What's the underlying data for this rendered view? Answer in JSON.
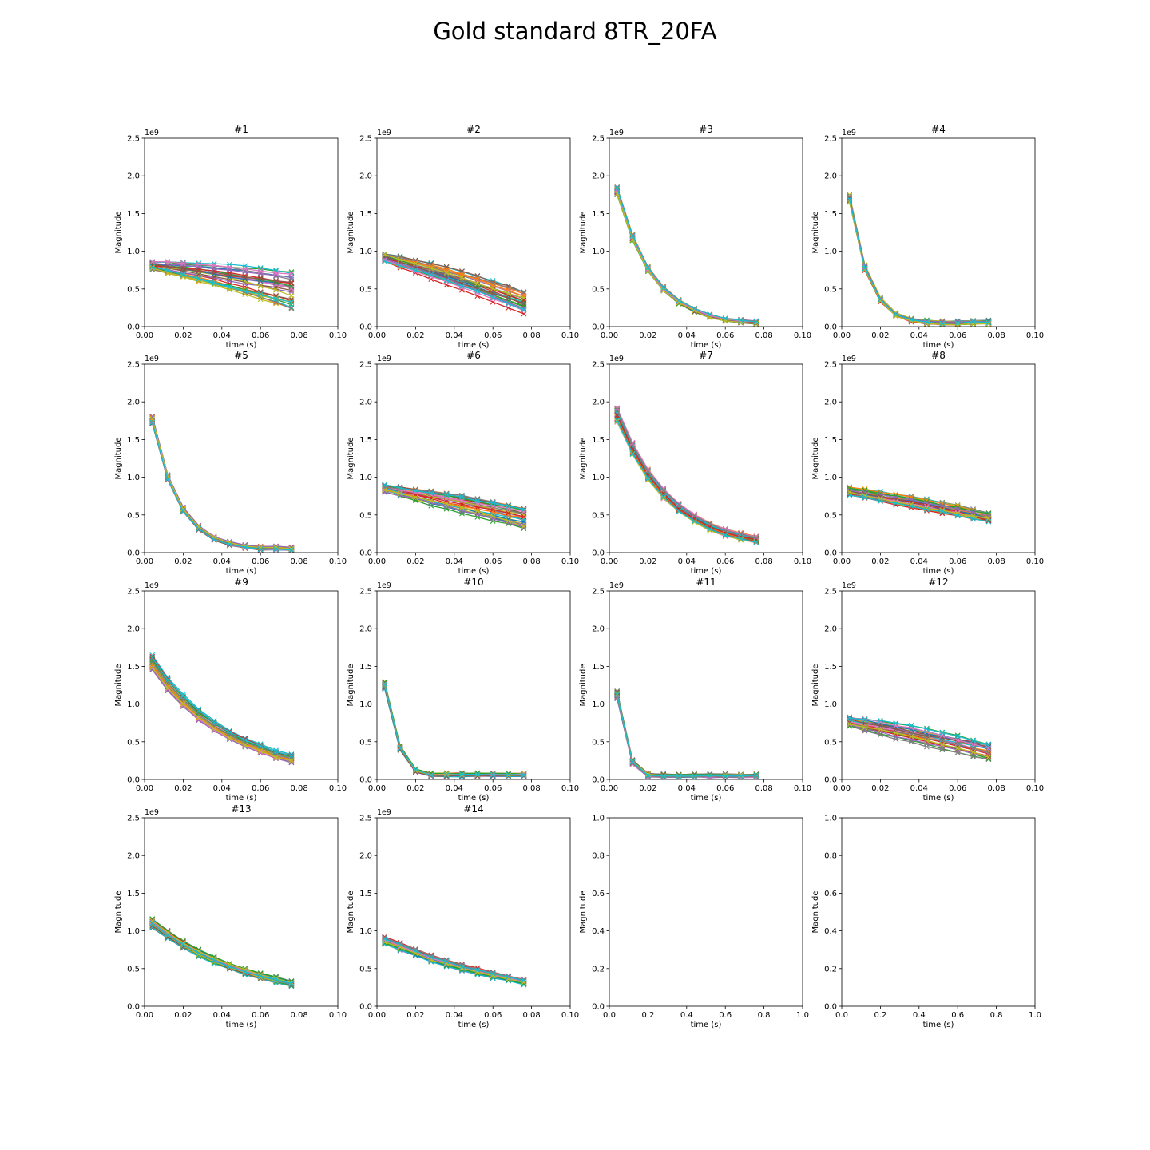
{
  "figure_title": "Gold standard 8TR_20FA",
  "colors": [
    "#1f77b4",
    "#ff7f0e",
    "#2ca02c",
    "#d62728",
    "#9467bd",
    "#8c564b",
    "#e377c2",
    "#7f7f7f",
    "#bcbd22",
    "#17becf"
  ],
  "chart_data": [
    {
      "type": "line",
      "title": "#1",
      "xlabel": "time (s)",
      "ylabel": "Magnitude",
      "exponent_label": "1e9",
      "xlim": [
        0,
        0.1
      ],
      "ylim": [
        0,
        2.5
      ],
      "xticks": [
        "0.00",
        "0.02",
        "0.04",
        "0.06",
        "0.08",
        "0.10"
      ],
      "yticks": [
        "0.0",
        "0.5",
        "1.0",
        "1.5",
        "2.0",
        "2.5"
      ],
      "x": [
        0.004,
        0.012,
        0.02,
        0.028,
        0.036,
        0.044,
        0.052,
        0.06,
        0.068,
        0.076
      ],
      "band": {
        "start": [
          0.75,
          0.87
        ],
        "end": [
          0.25,
          0.72
        ],
        "curve": "linear"
      }
    },
    {
      "type": "line",
      "title": "#2",
      "xlabel": "time (s)",
      "ylabel": "Magnitude",
      "exponent_label": "1e9",
      "xlim": [
        0,
        0.1
      ],
      "ylim": [
        0,
        2.5
      ],
      "xticks": [
        "0.00",
        "0.02",
        "0.04",
        "0.06",
        "0.08",
        "0.10"
      ],
      "yticks": [
        "0.0",
        "0.5",
        "1.0",
        "1.5",
        "2.0",
        "2.5"
      ],
      "x": [
        0.004,
        0.012,
        0.02,
        0.028,
        0.036,
        0.044,
        0.052,
        0.06,
        0.068,
        0.076
      ],
      "band": {
        "start": [
          0.84,
          0.97
        ],
        "end": [
          0.17,
          0.46
        ],
        "curve": "linear"
      }
    },
    {
      "type": "line",
      "title": "#3",
      "xlabel": "time (s)",
      "ylabel": "Magnitude",
      "exponent_label": "1e9",
      "xlim": [
        0,
        0.1
      ],
      "ylim": [
        0,
        2.5
      ],
      "xticks": [
        "0.00",
        "0.02",
        "0.04",
        "0.06",
        "0.08",
        "0.10"
      ],
      "yticks": [
        "0.0",
        "0.5",
        "1.0",
        "1.5",
        "2.0",
        "2.5"
      ],
      "x": [
        0.004,
        0.012,
        0.02,
        0.028,
        0.036,
        0.044,
        0.052,
        0.06,
        0.068,
        0.076
      ],
      "mean": [
        1.8,
        1.18,
        0.76,
        0.5,
        0.33,
        0.22,
        0.14,
        0.09,
        0.07,
        0.05
      ],
      "spread": 0.05
    },
    {
      "type": "line",
      "title": "#4",
      "xlabel": "time (s)",
      "ylabel": "Magnitude",
      "exponent_label": "1e9",
      "xlim": [
        0,
        0.1
      ],
      "ylim": [
        0,
        2.5
      ],
      "xticks": [
        "0.00",
        "0.02",
        "0.04",
        "0.06",
        "0.08",
        "0.10"
      ],
      "yticks": [
        "0.0",
        "0.5",
        "1.0",
        "1.5",
        "2.0",
        "2.5"
      ],
      "x": [
        0.004,
        0.012,
        0.02,
        0.028,
        0.036,
        0.044,
        0.052,
        0.06,
        0.068,
        0.076
      ],
      "mean": [
        1.7,
        0.78,
        0.36,
        0.16,
        0.09,
        0.06,
        0.05,
        0.05,
        0.06,
        0.06
      ],
      "spread": 0.05
    },
    {
      "type": "line",
      "title": "#5",
      "xlabel": "time (s)",
      "ylabel": "Magnitude",
      "exponent_label": "1e9",
      "xlim": [
        0,
        0.1
      ],
      "ylim": [
        0,
        2.5
      ],
      "xticks": [
        "0.00",
        "0.02",
        "0.04",
        "0.06",
        "0.08",
        "0.10"
      ],
      "yticks": [
        "0.0",
        "0.5",
        "1.0",
        "1.5",
        "2.0",
        "2.5"
      ],
      "x": [
        0.004,
        0.012,
        0.02,
        0.028,
        0.036,
        0.044,
        0.052,
        0.06,
        0.068,
        0.076
      ],
      "mean": [
        1.76,
        1.0,
        0.57,
        0.33,
        0.19,
        0.12,
        0.08,
        0.06,
        0.06,
        0.05
      ],
      "spread": 0.05
    },
    {
      "type": "line",
      "title": "#6",
      "xlabel": "time (s)",
      "ylabel": "Magnitude",
      "exponent_label": "1e9",
      "xlim": [
        0,
        0.1
      ],
      "ylim": [
        0,
        2.5
      ],
      "xticks": [
        "0.00",
        "0.02",
        "0.04",
        "0.06",
        "0.08",
        "0.10"
      ],
      "yticks": [
        "0.0",
        "0.5",
        "1.0",
        "1.5",
        "2.0",
        "2.5"
      ],
      "x": [
        0.004,
        0.012,
        0.02,
        0.028,
        0.036,
        0.044,
        0.052,
        0.06,
        0.068,
        0.076
      ],
      "band": {
        "start": [
          0.8,
          0.9
        ],
        "end": [
          0.33,
          0.58
        ],
        "curve": "linear"
      }
    },
    {
      "type": "line",
      "title": "#7",
      "xlabel": "time (s)",
      "ylabel": "Magnitude",
      "exponent_label": "1e9",
      "xlim": [
        0,
        0.1
      ],
      "ylim": [
        0,
        2.5
      ],
      "xticks": [
        "0.00",
        "0.02",
        "0.04",
        "0.06",
        "0.08",
        "0.10"
      ],
      "yticks": [
        "0.0",
        "0.5",
        "1.0",
        "1.5",
        "2.0",
        "2.5"
      ],
      "x": [
        0.004,
        0.012,
        0.02,
        0.028,
        0.036,
        0.044,
        0.052,
        0.06,
        0.068,
        0.076
      ],
      "mean": [
        1.82,
        1.37,
        1.03,
        0.78,
        0.59,
        0.45,
        0.34,
        0.26,
        0.21,
        0.17
      ],
      "spread": 0.1
    },
    {
      "type": "line",
      "title": "#8",
      "xlabel": "time (s)",
      "ylabel": "Magnitude",
      "exponent_label": "1e9",
      "xlim": [
        0,
        0.1
      ],
      "ylim": [
        0,
        2.5
      ],
      "xticks": [
        "0.00",
        "0.02",
        "0.04",
        "0.06",
        "0.08",
        "0.10"
      ],
      "yticks": [
        "0.0",
        "0.5",
        "1.0",
        "1.5",
        "2.0",
        "2.5"
      ],
      "x": [
        0.004,
        0.012,
        0.02,
        0.028,
        0.036,
        0.044,
        0.052,
        0.06,
        0.068,
        0.076
      ],
      "band": {
        "start": [
          0.76,
          0.87
        ],
        "end": [
          0.4,
          0.52
        ],
        "curve": "linear"
      }
    },
    {
      "type": "line",
      "title": "#9",
      "xlabel": "time (s)",
      "ylabel": "Magnitude",
      "exponent_label": "1e9",
      "xlim": [
        0,
        0.1
      ],
      "ylim": [
        0,
        2.5
      ],
      "xticks": [
        "0.00",
        "0.02",
        "0.04",
        "0.06",
        "0.08",
        "0.10"
      ],
      "yticks": [
        "0.0",
        "0.5",
        "1.0",
        "1.5",
        "2.0",
        "2.5"
      ],
      "x": [
        0.004,
        0.012,
        0.02,
        0.028,
        0.036,
        0.044,
        0.052,
        0.06,
        0.068,
        0.076
      ],
      "mean": [
        1.55,
        1.27,
        1.05,
        0.86,
        0.71,
        0.59,
        0.49,
        0.41,
        0.33,
        0.28
      ],
      "spread": 0.1
    },
    {
      "type": "line",
      "title": "#10",
      "xlabel": "time (s)",
      "ylabel": "Magnitude",
      "exponent_label": "1e9",
      "xlim": [
        0,
        0.1
      ],
      "ylim": [
        0,
        2.5
      ],
      "xticks": [
        "0.00",
        "0.02",
        "0.04",
        "0.06",
        "0.08",
        "0.10"
      ],
      "yticks": [
        "0.0",
        "0.5",
        "1.0",
        "1.5",
        "2.0",
        "2.5"
      ],
      "x": [
        0.004,
        0.012,
        0.02,
        0.028,
        0.036,
        0.044,
        0.052,
        0.06,
        0.068,
        0.076
      ],
      "mean": [
        1.25,
        0.42,
        0.12,
        0.06,
        0.06,
        0.06,
        0.06,
        0.06,
        0.06,
        0.06
      ],
      "spread": 0.05
    },
    {
      "type": "line",
      "title": "#11",
      "xlabel": "time (s)",
      "ylabel": "Magnitude",
      "exponent_label": "1e9",
      "xlim": [
        0,
        0.1
      ],
      "ylim": [
        0,
        2.5
      ],
      "xticks": [
        "0.00",
        "0.02",
        "0.04",
        "0.06",
        "0.08",
        "0.10"
      ],
      "yticks": [
        "0.0",
        "0.5",
        "1.0",
        "1.5",
        "2.0",
        "2.5"
      ],
      "x": [
        0.004,
        0.012,
        0.02,
        0.028,
        0.036,
        0.044,
        0.052,
        0.06,
        0.068,
        0.076
      ],
      "mean": [
        1.12,
        0.23,
        0.06,
        0.05,
        0.05,
        0.05,
        0.05,
        0.05,
        0.05,
        0.05
      ],
      "spread": 0.05
    },
    {
      "type": "line",
      "title": "#12",
      "xlabel": "time (s)",
      "ylabel": "Magnitude",
      "exponent_label": "1e9",
      "xlim": [
        0,
        0.1
      ],
      "ylim": [
        0,
        2.5
      ],
      "xticks": [
        "0.00",
        "0.02",
        "0.04",
        "0.06",
        "0.08",
        "0.10"
      ],
      "yticks": [
        "0.0",
        "0.5",
        "1.0",
        "1.5",
        "2.0",
        "2.5"
      ],
      "x": [
        0.004,
        0.012,
        0.02,
        0.028,
        0.036,
        0.044,
        0.052,
        0.06,
        0.068,
        0.076
      ],
      "band": {
        "start": [
          0.7,
          0.83
        ],
        "end": [
          0.27,
          0.46
        ],
        "curve": "linear"
      }
    },
    {
      "type": "line",
      "title": "#13",
      "xlabel": "time (s)",
      "ylabel": "Magnitude",
      "exponent_label": "1e9",
      "xlim": [
        0,
        0.1
      ],
      "ylim": [
        0,
        2.5
      ],
      "xticks": [
        "0.00",
        "0.02",
        "0.04",
        "0.06",
        "0.08",
        "0.10"
      ],
      "yticks": [
        "0.0",
        "0.5",
        "1.0",
        "1.5",
        "2.0",
        "2.5"
      ],
      "x": [
        0.004,
        0.012,
        0.02,
        0.028,
        0.036,
        0.044,
        0.052,
        0.06,
        0.068,
        0.076
      ],
      "mean": [
        1.1,
        0.95,
        0.82,
        0.71,
        0.61,
        0.53,
        0.46,
        0.4,
        0.35,
        0.3
      ],
      "spread": 0.06
    },
    {
      "type": "line",
      "title": "#14",
      "xlabel": "time (s)",
      "ylabel": "Magnitude",
      "exponent_label": "1e9",
      "xlim": [
        0,
        0.1
      ],
      "ylim": [
        0,
        2.5
      ],
      "xticks": [
        "0.00",
        "0.02",
        "0.04",
        "0.06",
        "0.08",
        "0.10"
      ],
      "yticks": [
        "0.0",
        "0.5",
        "1.0",
        "1.5",
        "2.0",
        "2.5"
      ],
      "x": [
        0.004,
        0.012,
        0.02,
        0.028,
        0.036,
        0.044,
        0.052,
        0.06,
        0.068,
        0.076
      ],
      "mean": [
        0.87,
        0.79,
        0.71,
        0.63,
        0.57,
        0.51,
        0.46,
        0.41,
        0.37,
        0.32
      ],
      "spread": 0.06
    },
    {
      "type": "empty",
      "title": "",
      "xlabel": "time (s)",
      "ylabel": "Magnitude",
      "xlim": [
        0,
        1
      ],
      "ylim": [
        0,
        1
      ],
      "xticks": [
        "0.0",
        "0.2",
        "0.4",
        "0.6",
        "0.8",
        "1.0"
      ],
      "yticks": [
        "0.0",
        "0.2",
        "0.4",
        "0.6",
        "0.8",
        "1.0"
      ]
    },
    {
      "type": "empty",
      "title": "",
      "xlabel": "time (s)",
      "ylabel": "Magnitude",
      "xlim": [
        0,
        1
      ],
      "ylim": [
        0,
        1
      ],
      "xticks": [
        "0.0",
        "0.2",
        "0.4",
        "0.6",
        "0.8",
        "1.0"
      ],
      "yticks": [
        "0.0",
        "0.2",
        "0.4",
        "0.6",
        "0.8",
        "1.0"
      ]
    }
  ]
}
